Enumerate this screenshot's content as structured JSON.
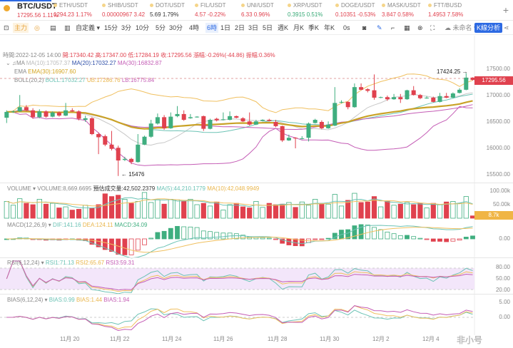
{
  "header": {
    "symbol": "BTC/USDT",
    "price": "17295.56",
    "change": "1.11%",
    "tickers": [
      {
        "name": "ETH/USDT",
        "price": "1294.23",
        "change": "1.17%",
        "color": "#e0414e"
      },
      {
        "name": "SHIB/USDT",
        "price": "0.00000967",
        "change": "3.42",
        "color": "#e0414e"
      },
      {
        "name": "DOT/USDT",
        "price": "5.69",
        "change": "1.79%",
        "color": "#333333"
      },
      {
        "name": "FIL/USDT",
        "price": "4.57",
        "change": "-0.22%",
        "color": "#e0414e"
      },
      {
        "name": "UNI/USDT",
        "price": "6.33",
        "change": "0.96%",
        "color": "#e0414e"
      },
      {
        "name": "XRP/USDT",
        "price": "0.3915",
        "change": "0.51%",
        "color": "#34a874"
      },
      {
        "name": "DOGE/USDT",
        "price": "0.10351",
        "change": "-0.53%",
        "color": "#e0414e"
      },
      {
        "name": "MASK/USDT",
        "price": "3.847",
        "change": "0.58%",
        "color": "#e0414e"
      },
      {
        "name": "FTT/BUSD",
        "price": "1.4953",
        "change": "7.58%",
        "color": "#e0414e"
      }
    ],
    "add": "+"
  },
  "toolbar": {
    "main": "主力",
    "custom": "自定義 ▾",
    "intervals": [
      "15分",
      "3分",
      "10分",
      "5分",
      "30分",
      "4時",
      "6時",
      "1日",
      "2日",
      "3日",
      "5日",
      "週K",
      "月K",
      "季K",
      "年K",
      "0s"
    ],
    "active_interval": "6時",
    "layout_name": "未命名 ▾",
    "analysis": "K線分析"
  },
  "info": {
    "time": "時間:2022-12-05 14:00",
    "open": "開:17340.42",
    "high": "高:17347.00",
    "low": "低:17284.19",
    "close": "收:17295.56",
    "chg": "漲幅:-0.26%(-44.86)",
    "amp": "振幅:0.36%",
    "ma": {
      "label": "MA",
      "ma10": "MA(10):17057.37",
      "ma20": "MA(20):17032.27",
      "ma30": "MA(30):16832.87"
    },
    "ema": {
      "label": "EMA",
      "ema30": "EMA(30):16907.60"
    },
    "boll": {
      "label": "BOLL(20,2)",
      "mid": "BOLL:17032.27",
      "ub": "UB:17286.76",
      "lb": "LB:16775.84"
    }
  },
  "price_axis": [
    "17500.00",
    "17000.00",
    "16500.00",
    "16000.00",
    "15500.00"
  ],
  "last_price": "17295.56",
  "high_mark": "17424.25",
  "low_mark": "15476",
  "volume": {
    "title": "VOLUME ▾",
    "vol": "VOLUME:8,669.6695",
    "est": "預估成交量:42,502.2379",
    "ma5": "MA(5):44,210.1779",
    "ma10": "MA(10):42,048.9949",
    "axis": [
      "100.00k",
      "50.00k"
    ],
    "last": "8.7k"
  },
  "macd": {
    "title": "MACD(12,26,9) ▾",
    "dif": "DIF:141.16",
    "dea": "DEA:124.11",
    "macd": "MACD:34.09",
    "axis": [
      "0.00"
    ]
  },
  "rsi": {
    "title": "RSI(6,12,24) ▾",
    "r1": "RSI1:71.13",
    "r2": "RSI2:65.67",
    "r3": "RSI3:59.31",
    "axis": [
      "80.00",
      "50.00",
      "20.00"
    ]
  },
  "bias": {
    "title": "BIAS(6,12,24) ▾",
    "b1": "BIAS:0.99",
    "b2": "BIAS:1.44",
    "b3": "BIAS:1.94",
    "axis": [
      "5.00",
      "0.00"
    ]
  },
  "dates": [
    "11月 20",
    "11月 22",
    "11月 24",
    "11月 26",
    "11月 28",
    "11月 30",
    "12月 2",
    "12月 4"
  ],
  "watermark": "非小号",
  "colors": {
    "up": "#3fae7f",
    "down": "#e0414e",
    "ma10": "#c8c8c8",
    "ma20": "#2f4fa8",
    "ma30": "#c45cb5",
    "ema30": "#c9a227",
    "boll": "#6cc3b5",
    "ub": "#f0c060",
    "lb": "#c45cb5"
  },
  "chart_data": {
    "type": "candlestick",
    "ohlc": [
      [
        16580,
        16720,
        16480,
        16690
      ],
      [
        16690,
        16720,
        16670,
        16700
      ],
      [
        16700,
        17010,
        16690,
        16780
      ],
      [
        16780,
        16820,
        16700,
        16720
      ],
      [
        16720,
        16760,
        16560,
        16590
      ],
      [
        16590,
        16740,
        16570,
        16700
      ],
      [
        16700,
        16720,
        16580,
        16600
      ],
      [
        16600,
        16700,
        16590,
        16680
      ],
      [
        16680,
        16700,
        16600,
        16620
      ],
      [
        16620,
        16860,
        16610,
        16720
      ],
      [
        16720,
        16760,
        16690,
        16700
      ],
      [
        16700,
        16720,
        16530,
        16560
      ],
      [
        16540,
        16620,
        16500,
        16570
      ],
      [
        16570,
        16590,
        16250,
        16270
      ],
      [
        16270,
        16300,
        15890,
        16210
      ],
      [
        16230,
        16260,
        16040,
        16070
      ],
      [
        16070,
        16330,
        15960,
        15990
      ],
      [
        16010,
        16050,
        15476,
        15770
      ],
      [
        15780,
        15840,
        15760,
        15800
      ],
      [
        15800,
        15820,
        15700,
        15740
      ],
      [
        15740,
        16270,
        15730,
        16070
      ],
      [
        16070,
        16240,
        16060,
        16220
      ],
      [
        16220,
        16540,
        16200,
        16470
      ],
      [
        16470,
        16660,
        16450,
        16590
      ],
      [
        16590,
        16630,
        16350,
        16380
      ],
      [
        16380,
        16680,
        16370,
        16600
      ],
      [
        16610,
        16800,
        16590,
        16650
      ],
      [
        16650,
        16720,
        16520,
        16540
      ],
      [
        16570,
        16650,
        16560,
        16590
      ],
      [
        16590,
        16610,
        16580,
        16600
      ],
      [
        16610,
        16620,
        16330,
        16370
      ],
      [
        16370,
        16560,
        16360,
        16540
      ],
      [
        16560,
        16580,
        16510,
        16530
      ],
      [
        16540,
        16680,
        16530,
        16550
      ],
      [
        16540,
        16700,
        16530,
        16610
      ],
      [
        16610,
        16620,
        16570,
        16580
      ],
      [
        16570,
        16590,
        16500,
        16510
      ],
      [
        16510,
        16680,
        16430,
        16450
      ],
      [
        16450,
        16540,
        16440,
        16510
      ],
      [
        16520,
        16550,
        16510,
        16540
      ],
      [
        16540,
        16560,
        16510,
        16520
      ],
      [
        16500,
        16540,
        16400,
        16420
      ],
      [
        16420,
        16430,
        16120,
        16150
      ],
      [
        16150,
        16260,
        16140,
        16200
      ],
      [
        16200,
        16210,
        16000,
        16195
      ],
      [
        16190,
        16230,
        16170,
        16190
      ],
      [
        16200,
        16490,
        16130,
        16470
      ],
      [
        16480,
        16560,
        16470,
        16540
      ],
      [
        16500,
        16530,
        16360,
        16380
      ],
      [
        16380,
        16510,
        16370,
        16450
      ],
      [
        16430,
        17160,
        16420,
        16860
      ],
      [
        16870,
        16910,
        16850,
        16880
      ],
      [
        16880,
        16890,
        16740,
        16780
      ],
      [
        16780,
        17230,
        16770,
        17160
      ],
      [
        17160,
        17230,
        17100,
        17110
      ],
      [
        17120,
        17140,
        17060,
        17090
      ],
      [
        17100,
        17400,
        16920,
        16960
      ],
      [
        16960,
        16980,
        16950,
        16970
      ],
      [
        16970,
        17000,
        16900,
        16930
      ],
      [
        16930,
        17030,
        16920,
        16970
      ],
      [
        16970,
        17030,
        16860,
        16930
      ],
      [
        16930,
        17110,
        16920,
        17100
      ],
      [
        17100,
        17180,
        17000,
        17010
      ],
      [
        17010,
        17030,
        16930,
        16950
      ],
      [
        16950,
        16990,
        16940,
        16960
      ],
      [
        16960,
        16980,
        16870,
        16880
      ],
      [
        16880,
        17050,
        16870,
        16990
      ],
      [
        16990,
        17050,
        16950,
        16960
      ],
      [
        16960,
        17060,
        16950,
        17040
      ],
      [
        17050,
        17140,
        17040,
        17110
      ],
      [
        17110,
        17424.25,
        17100,
        17340
      ],
      [
        17340.42,
        17347,
        17284.19,
        17295.56
      ]
    ],
    "volume": [
      62,
      48,
      72,
      55,
      50,
      70,
      52,
      55,
      38,
      42,
      30,
      33,
      48,
      36,
      50,
      90,
      80,
      85,
      70,
      55,
      62,
      95,
      58,
      68,
      52,
      70,
      68,
      62,
      70,
      50,
      55,
      45,
      60,
      30,
      50,
      55,
      42,
      38,
      62,
      40,
      55,
      50,
      52,
      58,
      40,
      60,
      48,
      70,
      55,
      52,
      88,
      45,
      66,
      92,
      58,
      60,
      80,
      42,
      62,
      48,
      52,
      58,
      50,
      55,
      38,
      55,
      50,
      60,
      62,
      55,
      80,
      8.67
    ],
    "ylim": [
      15400,
      17650
    ]
  }
}
